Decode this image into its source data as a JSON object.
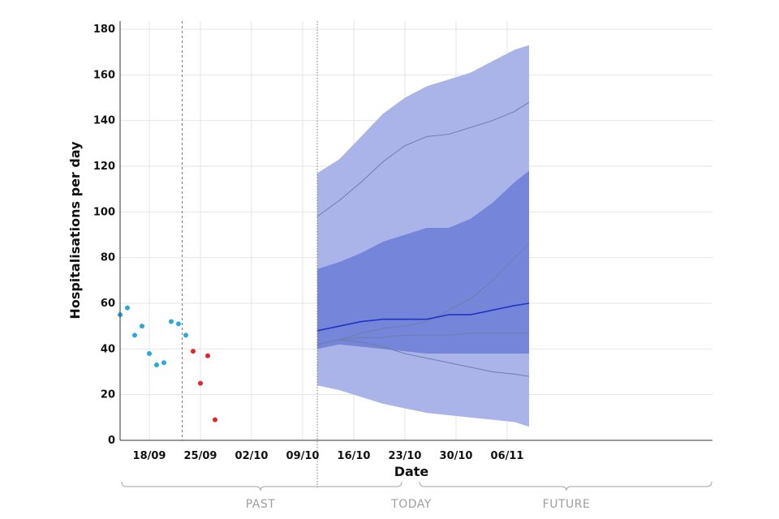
{
  "chart_data": {
    "type": "line",
    "xlabel": "Date",
    "ylabel": "Hospitalisations per day",
    "ylim": [
      0,
      180
    ],
    "yticks": [
      0,
      20,
      40,
      60,
      80,
      100,
      120,
      140,
      160,
      180
    ],
    "xticks": [
      {
        "label": "18/09",
        "day": 18
      },
      {
        "label": "25/09",
        "day": 25
      },
      {
        "label": "02/10",
        "day": 32
      },
      {
        "label": "09/10",
        "day": 39
      },
      {
        "label": "16/10",
        "day": 46
      },
      {
        "label": "23/10",
        "day": 53
      },
      {
        "label": "30/10",
        "day": 60
      },
      {
        "label": "06/11",
        "day": 67
      }
    ],
    "grid": true,
    "dividers": [
      {
        "name": "split",
        "day": 22.5
      },
      {
        "name": "today",
        "day": 41
      }
    ],
    "observed_blue": [
      {
        "x": "14/09",
        "y": 55
      },
      {
        "x": "15/09",
        "y": 58
      },
      {
        "x": "16/09",
        "y": 46
      },
      {
        "x": "17/09",
        "y": 50
      },
      {
        "x": "18/09",
        "y": 38
      },
      {
        "x": "19/09",
        "y": 33
      },
      {
        "x": "20/09",
        "y": 34
      },
      {
        "x": "21/09",
        "y": 52
      },
      {
        "x": "22/09",
        "y": 51
      },
      {
        "x": "23/09",
        "y": 46
      }
    ],
    "observed_red": [
      {
        "x": "24/09",
        "y": 39
      },
      {
        "x": "25/09",
        "y": 25
      },
      {
        "x": "26/09",
        "y": 37
      },
      {
        "x": "27/09",
        "y": 9
      }
    ],
    "forecast": {
      "x": [
        "11/10",
        "14/10",
        "17/10",
        "20/10",
        "23/10",
        "26/10",
        "29/10",
        "01/11",
        "04/11",
        "07/11",
        "09/11"
      ],
      "median": [
        48,
        50,
        52,
        53,
        53,
        53,
        55,
        55,
        57,
        59,
        60
      ],
      "outer_lower": [
        24,
        22,
        19,
        16,
        14,
        12,
        11,
        10,
        9,
        8,
        6
      ],
      "outer_upper": [
        117,
        123,
        133,
        143,
        150,
        155,
        158,
        161,
        166,
        171,
        173
      ],
      "inner_lower": [
        40,
        42,
        41,
        40,
        39,
        38,
        38,
        38,
        38,
        38,
        38
      ],
      "inner_upper": [
        75,
        78,
        82,
        87,
        90,
        93,
        93,
        97,
        104,
        113,
        118
      ],
      "paths": [
        [
          98,
          105,
          113,
          122,
          129,
          133,
          134,
          137,
          140,
          144,
          148
        ],
        [
          42,
          44,
          47,
          49,
          50,
          52,
          57,
          62,
          70,
          80,
          86
        ],
        [
          42,
          44,
          45,
          45,
          46,
          46,
          46,
          47,
          47,
          47,
          47
        ],
        [
          42,
          44,
          43,
          41,
          38,
          36,
          34,
          32,
          30,
          29,
          28
        ]
      ]
    },
    "colors": {
      "outer_band": "#aab4e8",
      "inner_band": "#7585da",
      "median_line": "#1f35c4",
      "path_lines": "#6f7dab",
      "observed_blue": "#29a8e0",
      "observed_red": "#e0262c",
      "grid": "#e6e6e6"
    }
  },
  "periods": {
    "past": "PAST",
    "today": "TODAY",
    "future": "FUTURE"
  }
}
